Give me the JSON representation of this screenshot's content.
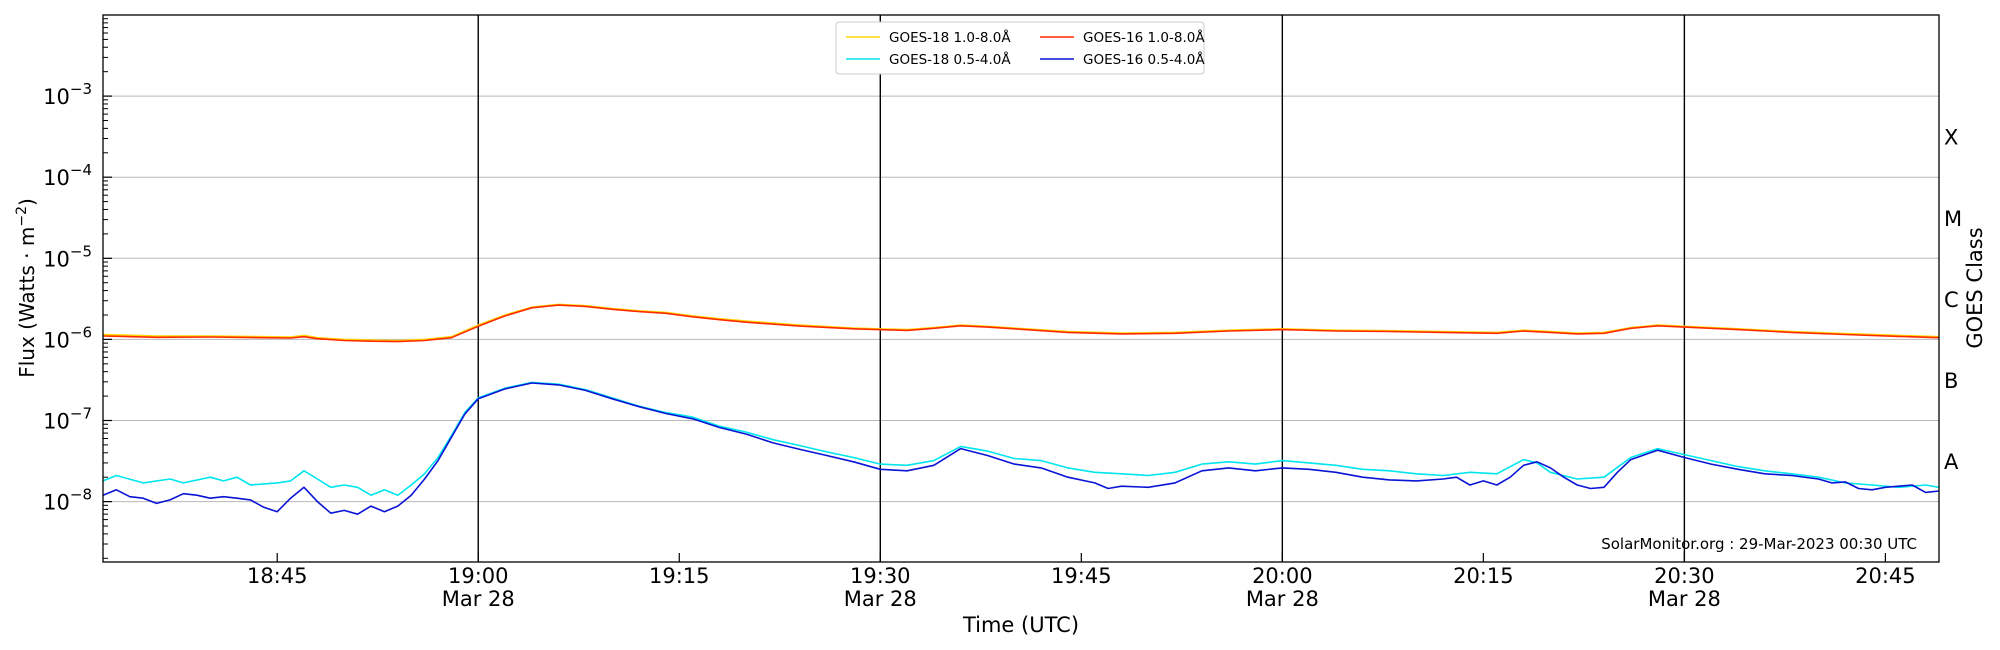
{
  "chart_data": {
    "type": "line",
    "xlabel": "Time (UTC)",
    "ylabel": "Flux (Watts · m",
    "ylabel_sup": "−2",
    "ylabel_tail": ")",
    "right_label": "GOES Class",
    "yscale": "log",
    "ylim": [
      1.8e-09,
      0.01
    ],
    "xlim": [
      "18:32",
      "20:49"
    ],
    "grid": "horizontal",
    "legend_position": "top-center",
    "watermark": "SolarMonitor.org : 29-Mar-2023 00:30 UTC",
    "x_ticks": [
      {
        "t": 45,
        "label": "18:45",
        "sublabel": ""
      },
      {
        "t": 60,
        "label": "19:00",
        "sublabel": "Mar 28"
      },
      {
        "t": 75,
        "label": "19:15",
        "sublabel": ""
      },
      {
        "t": 90,
        "label": "19:30",
        "sublabel": "Mar 28"
      },
      {
        "t": 105,
        "label": "19:45",
        "sublabel": ""
      },
      {
        "t": 120,
        "label": "20:00",
        "sublabel": "Mar 28"
      },
      {
        "t": 135,
        "label": "20:15",
        "sublabel": ""
      },
      {
        "t": 150,
        "label": "20:30",
        "sublabel": "Mar 28"
      },
      {
        "t": 165,
        "label": "20:45",
        "sublabel": ""
      }
    ],
    "vlines_at": [
      60,
      90,
      120,
      150
    ],
    "y_ticks": [
      {
        "exp": -3,
        "base": "10",
        "sup": "−3"
      },
      {
        "exp": -4,
        "base": "10",
        "sup": "−4"
      },
      {
        "exp": -5,
        "base": "10",
        "sup": "−5"
      },
      {
        "exp": -6,
        "base": "10",
        "sup": "−6"
      },
      {
        "exp": -7,
        "base": "10",
        "sup": "−7"
      },
      {
        "exp": -8,
        "base": "10",
        "sup": "−8"
      }
    ],
    "goes_classes": [
      {
        "label": "X",
        "flux": 0.000316
      },
      {
        "label": "M",
        "flux": 3.16e-05
      },
      {
        "label": "C",
        "flux": 3.16e-06
      },
      {
        "label": "B",
        "flux": 3.16e-07
      },
      {
        "label": "A",
        "flux": 3.16e-08
      }
    ],
    "series": [
      {
        "name": "GOES-18 1.0-8.0Å",
        "color": "#ffd700",
        "points": [
          [
            32,
            1.15e-06
          ],
          [
            36,
            1.1e-06
          ],
          [
            40,
            1.1e-06
          ],
          [
            44,
            1.08e-06
          ],
          [
            46,
            1.07e-06
          ],
          [
            47,
            1.12e-06
          ],
          [
            48,
            1.05e-06
          ],
          [
            50,
            1e-06
          ],
          [
            52,
            9.8e-07
          ],
          [
            54,
            9.7e-07
          ],
          [
            56,
            1e-06
          ],
          [
            58,
            1.08e-06
          ],
          [
            60,
            1.5e-06
          ],
          [
            62,
            2e-06
          ],
          [
            64,
            2.5e-06
          ],
          [
            66,
            2.7e-06
          ],
          [
            68,
            2.6e-06
          ],
          [
            70,
            2.4e-06
          ],
          [
            72,
            2.25e-06
          ],
          [
            74,
            2.15e-06
          ],
          [
            76,
            1.95e-06
          ],
          [
            78,
            1.8e-06
          ],
          [
            80,
            1.68e-06
          ],
          [
            84,
            1.5e-06
          ],
          [
            88,
            1.38e-06
          ],
          [
            92,
            1.32e-06
          ],
          [
            94,
            1.4e-06
          ],
          [
            96,
            1.5e-06
          ],
          [
            98,
            1.45e-06
          ],
          [
            100,
            1.38e-06
          ],
          [
            104,
            1.25e-06
          ],
          [
            108,
            1.2e-06
          ],
          [
            112,
            1.22e-06
          ],
          [
            116,
            1.3e-06
          ],
          [
            120,
            1.35e-06
          ],
          [
            124,
            1.3e-06
          ],
          [
            128,
            1.28e-06
          ],
          [
            132,
            1.25e-06
          ],
          [
            136,
            1.22e-06
          ],
          [
            138,
            1.3e-06
          ],
          [
            140,
            1.25e-06
          ],
          [
            142,
            1.2e-06
          ],
          [
            144,
            1.22e-06
          ],
          [
            146,
            1.4e-06
          ],
          [
            148,
            1.5e-06
          ],
          [
            150,
            1.45e-06
          ],
          [
            154,
            1.35e-06
          ],
          [
            158,
            1.25e-06
          ],
          [
            162,
            1.18e-06
          ],
          [
            166,
            1.12e-06
          ],
          [
            169,
            1.08e-06
          ]
        ]
      },
      {
        "name": "GOES-18 0.5-4.0Å",
        "color": "#00e5ee",
        "points": [
          [
            32,
            1.8e-08
          ],
          [
            33,
            2.1e-08
          ],
          [
            35,
            1.7e-08
          ],
          [
            37,
            1.9e-08
          ],
          [
            38,
            1.7e-08
          ],
          [
            40,
            2e-08
          ],
          [
            41,
            1.8e-08
          ],
          [
            42,
            2e-08
          ],
          [
            43,
            1.6e-08
          ],
          [
            45,
            1.7e-08
          ],
          [
            46,
            1.8e-08
          ],
          [
            47,
            2.4e-08
          ],
          [
            48,
            1.9e-08
          ],
          [
            49,
            1.5e-08
          ],
          [
            50,
            1.6e-08
          ],
          [
            51,
            1.5e-08
          ],
          [
            52,
            1.2e-08
          ],
          [
            53,
            1.4e-08
          ],
          [
            54,
            1.2e-08
          ],
          [
            55,
            1.6e-08
          ],
          [
            56,
            2.2e-08
          ],
          [
            57,
            3.5e-08
          ],
          [
            58,
            6.5e-08
          ],
          [
            59,
            1.25e-07
          ],
          [
            60,
            1.9e-07
          ],
          [
            62,
            2.5e-07
          ],
          [
            64,
            2.95e-07
          ],
          [
            66,
            2.8e-07
          ],
          [
            68,
            2.4e-07
          ],
          [
            70,
            1.9e-07
          ],
          [
            72,
            1.5e-07
          ],
          [
            74,
            1.25e-07
          ],
          [
            76,
            1.1e-07
          ],
          [
            78,
            8.5e-08
          ],
          [
            80,
            7.2e-08
          ],
          [
            82,
            5.8e-08
          ],
          [
            84,
            4.9e-08
          ],
          [
            86,
            4.1e-08
          ],
          [
            88,
            3.5e-08
          ],
          [
            90,
            2.9e-08
          ],
          [
            92,
            2.8e-08
          ],
          [
            94,
            3.2e-08
          ],
          [
            96,
            4.8e-08
          ],
          [
            98,
            4.2e-08
          ],
          [
            100,
            3.4e-08
          ],
          [
            102,
            3.2e-08
          ],
          [
            104,
            2.6e-08
          ],
          [
            106,
            2.3e-08
          ],
          [
            108,
            2.2e-08
          ],
          [
            110,
            2.1e-08
          ],
          [
            112,
            2.3e-08
          ],
          [
            114,
            2.9e-08
          ],
          [
            116,
            3.1e-08
          ],
          [
            118,
            2.9e-08
          ],
          [
            120,
            3.2e-08
          ],
          [
            122,
            3e-08
          ],
          [
            124,
            2.8e-08
          ],
          [
            126,
            2.5e-08
          ],
          [
            128,
            2.4e-08
          ],
          [
            130,
            2.2e-08
          ],
          [
            132,
            2.1e-08
          ],
          [
            134,
            2.3e-08
          ],
          [
            136,
            2.2e-08
          ],
          [
            138,
            3.3e-08
          ],
          [
            139,
            3e-08
          ],
          [
            140,
            2.3e-08
          ],
          [
            142,
            1.9e-08
          ],
          [
            144,
            2e-08
          ],
          [
            146,
            3.5e-08
          ],
          [
            148,
            4.5e-08
          ],
          [
            150,
            3.8e-08
          ],
          [
            152,
            3.2e-08
          ],
          [
            154,
            2.7e-08
          ],
          [
            156,
            2.4e-08
          ],
          [
            158,
            2.2e-08
          ],
          [
            160,
            2e-08
          ],
          [
            162,
            1.7e-08
          ],
          [
            164,
            1.6e-08
          ],
          [
            166,
            1.5e-08
          ],
          [
            168,
            1.6e-08
          ],
          [
            169,
            1.5e-08
          ]
        ]
      },
      {
        "name": "GOES-16 1.0-8.0Å",
        "color": "#ff2a00",
        "points": [
          [
            32,
            1.1e-06
          ],
          [
            36,
            1.06e-06
          ],
          [
            40,
            1.07e-06
          ],
          [
            44,
            1.05e-06
          ],
          [
            46,
            1.04e-06
          ],
          [
            47,
            1.08e-06
          ],
          [
            48,
            1.02e-06
          ],
          [
            50,
            9.7e-07
          ],
          [
            52,
            9.5e-07
          ],
          [
            54,
            9.4e-07
          ],
          [
            56,
            9.7e-07
          ],
          [
            58,
            1.05e-06
          ],
          [
            60,
            1.45e-06
          ],
          [
            62,
            1.95e-06
          ],
          [
            64,
            2.45e-06
          ],
          [
            66,
            2.65e-06
          ],
          [
            68,
            2.55e-06
          ],
          [
            70,
            2.35e-06
          ],
          [
            72,
            2.2e-06
          ],
          [
            74,
            2.1e-06
          ],
          [
            76,
            1.9e-06
          ],
          [
            78,
            1.75e-06
          ],
          [
            80,
            1.63e-06
          ],
          [
            84,
            1.46e-06
          ],
          [
            88,
            1.35e-06
          ],
          [
            92,
            1.29e-06
          ],
          [
            94,
            1.37e-06
          ],
          [
            96,
            1.47e-06
          ],
          [
            98,
            1.42e-06
          ],
          [
            100,
            1.35e-06
          ],
          [
            104,
            1.22e-06
          ],
          [
            108,
            1.17e-06
          ],
          [
            112,
            1.19e-06
          ],
          [
            116,
            1.27e-06
          ],
          [
            120,
            1.32e-06
          ],
          [
            124,
            1.27e-06
          ],
          [
            128,
            1.25e-06
          ],
          [
            132,
            1.22e-06
          ],
          [
            136,
            1.19e-06
          ],
          [
            138,
            1.27e-06
          ],
          [
            140,
            1.22e-06
          ],
          [
            142,
            1.17e-06
          ],
          [
            144,
            1.19e-06
          ],
          [
            146,
            1.37e-06
          ],
          [
            148,
            1.47e-06
          ],
          [
            150,
            1.42e-06
          ],
          [
            154,
            1.32e-06
          ],
          [
            158,
            1.22e-06
          ],
          [
            162,
            1.15e-06
          ],
          [
            166,
            1.09e-06
          ],
          [
            169,
            1.05e-06
          ]
        ]
      },
      {
        "name": "GOES-16 0.5-4.0Å",
        "color": "#0a14d4",
        "points": [
          [
            32,
            1.2e-08
          ],
          [
            33,
            1.4e-08
          ],
          [
            34,
            1.15e-08
          ],
          [
            35,
            1.1e-08
          ],
          [
            36,
            9.5e-09
          ],
          [
            37,
            1.05e-08
          ],
          [
            38,
            1.25e-08
          ],
          [
            39,
            1.2e-08
          ],
          [
            40,
            1.1e-08
          ],
          [
            41,
            1.15e-08
          ],
          [
            42,
            1.1e-08
          ],
          [
            43,
            1.05e-08
          ],
          [
            44,
            8.5e-09
          ],
          [
            45,
            7.5e-09
          ],
          [
            46,
            1.1e-08
          ],
          [
            47,
            1.5e-08
          ],
          [
            48,
            1e-08
          ],
          [
            49,
            7.2e-09
          ],
          [
            50,
            7.8e-09
          ],
          [
            51,
            7e-09
          ],
          [
            52,
            8.8e-09
          ],
          [
            53,
            7.5e-09
          ],
          [
            54,
            8.8e-09
          ],
          [
            55,
            1.2e-08
          ],
          [
            56,
            1.9e-08
          ],
          [
            57,
            3.2e-08
          ],
          [
            58,
            6.2e-08
          ],
          [
            59,
            1.2e-07
          ],
          [
            60,
            1.85e-07
          ],
          [
            62,
            2.45e-07
          ],
          [
            64,
            2.9e-07
          ],
          [
            66,
            2.75e-07
          ],
          [
            68,
            2.35e-07
          ],
          [
            70,
            1.85e-07
          ],
          [
            72,
            1.48e-07
          ],
          [
            74,
            1.22e-07
          ],
          [
            76,
            1.05e-07
          ],
          [
            78,
            8.2e-08
          ],
          [
            80,
            6.8e-08
          ],
          [
            82,
            5.3e-08
          ],
          [
            84,
            4.4e-08
          ],
          [
            86,
            3.7e-08
          ],
          [
            88,
            3.1e-08
          ],
          [
            90,
            2.5e-08
          ],
          [
            92,
            2.4e-08
          ],
          [
            94,
            2.8e-08
          ],
          [
            96,
            4.5e-08
          ],
          [
            98,
            3.7e-08
          ],
          [
            100,
            2.9e-08
          ],
          [
            102,
            2.6e-08
          ],
          [
            104,
            2e-08
          ],
          [
            106,
            1.7e-08
          ],
          [
            107,
            1.45e-08
          ],
          [
            108,
            1.55e-08
          ],
          [
            110,
            1.5e-08
          ],
          [
            112,
            1.7e-08
          ],
          [
            114,
            2.4e-08
          ],
          [
            116,
            2.6e-08
          ],
          [
            118,
            2.4e-08
          ],
          [
            120,
            2.6e-08
          ],
          [
            122,
            2.5e-08
          ],
          [
            124,
            2.3e-08
          ],
          [
            126,
            2e-08
          ],
          [
            128,
            1.85e-08
          ],
          [
            130,
            1.8e-08
          ],
          [
            132,
            1.9e-08
          ],
          [
            133,
            2e-08
          ],
          [
            134,
            1.6e-08
          ],
          [
            135,
            1.8e-08
          ],
          [
            136,
            1.6e-08
          ],
          [
            137,
            2e-08
          ],
          [
            138,
            2.8e-08
          ],
          [
            139,
            3.1e-08
          ],
          [
            140,
            2.6e-08
          ],
          [
            141,
            2e-08
          ],
          [
            142,
            1.6e-08
          ],
          [
            143,
            1.45e-08
          ],
          [
            144,
            1.5e-08
          ],
          [
            145,
            2.3e-08
          ],
          [
            146,
            3.3e-08
          ],
          [
            148,
            4.3e-08
          ],
          [
            150,
            3.5e-08
          ],
          [
            152,
            2.9e-08
          ],
          [
            154,
            2.5e-08
          ],
          [
            156,
            2.2e-08
          ],
          [
            158,
            2.1e-08
          ],
          [
            160,
            1.9e-08
          ],
          [
            161,
            1.7e-08
          ],
          [
            162,
            1.75e-08
          ],
          [
            163,
            1.45e-08
          ],
          [
            164,
            1.4e-08
          ],
          [
            165,
            1.5e-08
          ],
          [
            166,
            1.55e-08
          ],
          [
            167,
            1.6e-08
          ],
          [
            168,
            1.3e-08
          ],
          [
            169,
            1.35e-08
          ]
        ]
      }
    ]
  }
}
